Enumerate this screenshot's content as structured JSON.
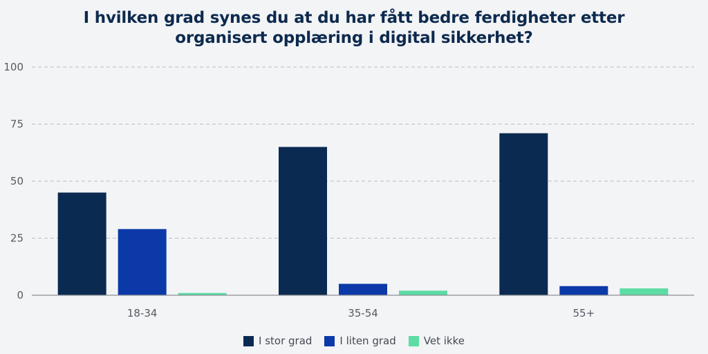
{
  "title_lines": [
    "I hvilken grad synes du at du har fått bedre ferdigheter etter",
    "organisert opplæring i digital sikkerhet?"
  ],
  "colors": {
    "background": "#f3f4f6",
    "series": [
      "#0b2a52",
      "#0b3aa8",
      "#5ddca4"
    ]
  },
  "chart_data": {
    "type": "bar",
    "title": "I hvilken grad synes du at du har fått bedre ferdigheter etter organisert opplæring i digital sikkerhet?",
    "categories": [
      "18-34",
      "35-54",
      "55+"
    ],
    "series": [
      {
        "name": "I stor grad",
        "values": [
          45,
          65,
          71
        ]
      },
      {
        "name": "I liten grad",
        "values": [
          29,
          5,
          4
        ]
      },
      {
        "name": "Vet ikke",
        "values": [
          1,
          2,
          3
        ]
      }
    ],
    "ylim": [
      0,
      100
    ],
    "yticks": [
      0,
      25,
      50,
      75,
      100
    ],
    "grid": true,
    "legend": "bottom-center"
  }
}
